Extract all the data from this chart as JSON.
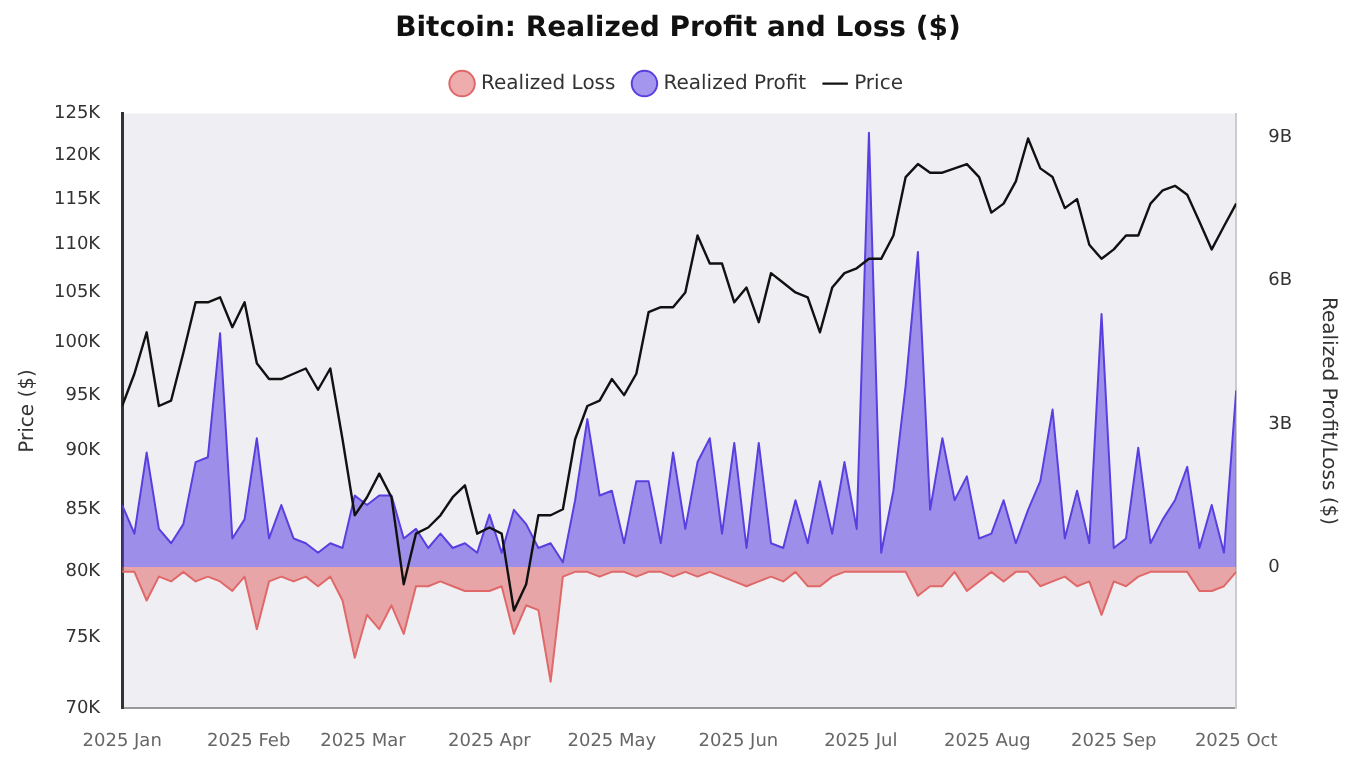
{
  "chart_data": {
    "type": "area",
    "title": "Bitcoin: Realized Profit and Loss ($)",
    "ylabel": "Price ($)",
    "y2label": "Realized Profit/Loss ($)",
    "legend": "top",
    "x": [
      "2025-01-01",
      "2025-01-04",
      "2025-01-07",
      "2025-01-10",
      "2025-01-13",
      "2025-01-16",
      "2025-01-19",
      "2025-01-22",
      "2025-01-25",
      "2025-01-28",
      "2025-01-31",
      "2025-02-03",
      "2025-02-06",
      "2025-02-09",
      "2025-02-12",
      "2025-02-15",
      "2025-02-18",
      "2025-02-21",
      "2025-02-24",
      "2025-02-27",
      "2025-03-02",
      "2025-03-05",
      "2025-03-08",
      "2025-03-11",
      "2025-03-14",
      "2025-03-17",
      "2025-03-20",
      "2025-03-23",
      "2025-03-26",
      "2025-03-29",
      "2025-04-01",
      "2025-04-04",
      "2025-04-07",
      "2025-04-10",
      "2025-04-13",
      "2025-04-16",
      "2025-04-19",
      "2025-04-22",
      "2025-04-25",
      "2025-04-28",
      "2025-05-01",
      "2025-05-04",
      "2025-05-07",
      "2025-05-10",
      "2025-05-13",
      "2025-05-16",
      "2025-05-19",
      "2025-05-22",
      "2025-05-25",
      "2025-05-28",
      "2025-05-31",
      "2025-06-03",
      "2025-06-06",
      "2025-06-09",
      "2025-06-12",
      "2025-06-15",
      "2025-06-18",
      "2025-06-21",
      "2025-06-24",
      "2025-06-27",
      "2025-06-30",
      "2025-07-03",
      "2025-07-06",
      "2025-07-09",
      "2025-07-12",
      "2025-07-15",
      "2025-07-18",
      "2025-07-21",
      "2025-07-24",
      "2025-07-27",
      "2025-07-30",
      "2025-08-02",
      "2025-08-05",
      "2025-08-08",
      "2025-08-11",
      "2025-08-14",
      "2025-08-17",
      "2025-08-20",
      "2025-08-23",
      "2025-08-26",
      "2025-08-29",
      "2025-09-01",
      "2025-09-04",
      "2025-09-07",
      "2025-09-10",
      "2025-09-13",
      "2025-09-16",
      "2025-09-19",
      "2025-09-22",
      "2025-09-25",
      "2025-09-28",
      "2025-10-01"
    ],
    "xlim": [
      "2025-01-01",
      "2025-10-01"
    ],
    "xticks": [
      {
        "value": "2025-01-01",
        "label": "2025 Jan"
      },
      {
        "value": "2025-02-01",
        "label": "2025 Feb"
      },
      {
        "value": "2025-03-01",
        "label": "2025 Mar"
      },
      {
        "value": "2025-04-01",
        "label": "2025 Apr"
      },
      {
        "value": "2025-05-01",
        "label": "2025 May"
      },
      {
        "value": "2025-06-01",
        "label": "2025 Jun"
      },
      {
        "value": "2025-07-01",
        "label": "2025 Jul"
      },
      {
        "value": "2025-08-01",
        "label": "2025 Aug"
      },
      {
        "value": "2025-09-01",
        "label": "2025 Sep"
      },
      {
        "value": "2025-10-01",
        "label": "2025 Oct"
      }
    ],
    "log": "y",
    "ylim": [
      70000,
      125000
    ],
    "yticks": [
      {
        "value": 70000,
        "label": "70K"
      },
      {
        "value": 75000,
        "label": "75K"
      },
      {
        "value": 80000,
        "label": "80K"
      },
      {
        "value": 85000,
        "label": "85K"
      },
      {
        "value": 90000,
        "label": "90K"
      },
      {
        "value": 95000,
        "label": "95K"
      },
      {
        "value": 100000,
        "label": "100K"
      },
      {
        "value": 105000,
        "label": "105K"
      },
      {
        "value": 110000,
        "label": "110K"
      },
      {
        "value": 115000,
        "label": "115K"
      },
      {
        "value": 120000,
        "label": "120K"
      },
      {
        "value": 125000,
        "label": "125K"
      }
    ],
    "y2lim": [
      -2.96,
      9.5
    ],
    "y2ticks": [
      0,
      {
        "value": 3,
        "label": "3B"
      },
      {
        "value": 6,
        "label": "6B"
      },
      {
        "value": 9,
        "label": "9B"
      }
    ],
    "series": [
      {
        "name": "Realized Loss",
        "axis": "y2",
        "color": "#e06868",
        "values": [
          -0.1,
          -0.1,
          -0.7,
          -0.2,
          -0.3,
          -0.1,
          -0.3,
          -0.2,
          -0.3,
          -0.5,
          -0.2,
          -1.3,
          -0.3,
          -0.2,
          -0.3,
          -0.2,
          -0.4,
          -0.2,
          -0.7,
          -1.9,
          -1.0,
          -1.3,
          -0.8,
          -1.4,
          -0.4,
          -0.4,
          -0.3,
          -0.4,
          -0.5,
          -0.5,
          -0.5,
          -0.4,
          -1.4,
          -0.8,
          -0.9,
          -2.4,
          -0.2,
          -0.1,
          -0.1,
          -0.2,
          -0.1,
          -0.1,
          -0.2,
          -0.1,
          -0.1,
          -0.2,
          -0.1,
          -0.2,
          -0.1,
          -0.2,
          -0.3,
          -0.4,
          -0.3,
          -0.2,
          -0.3,
          -0.1,
          -0.4,
          -0.4,
          -0.2,
          -0.1,
          -0.1,
          -0.1,
          -0.1,
          -0.1,
          -0.1,
          -0.6,
          -0.4,
          -0.4,
          -0.1,
          -0.5,
          -0.3,
          -0.1,
          -0.3,
          -0.1,
          -0.1,
          -0.4,
          -0.3,
          -0.2,
          -0.4,
          -0.3,
          -1.0,
          -0.3,
          -0.4,
          -0.2,
          -0.1,
          -0.1,
          -0.1,
          -0.1,
          -0.5,
          -0.5,
          -0.4,
          -0.1
        ]
      },
      {
        "name": "Realized Profit",
        "axis": "y2",
        "color": "#5a3fe0",
        "values": [
          1.3,
          0.7,
          2.4,
          0.8,
          0.5,
          0.9,
          2.2,
          2.3,
          4.9,
          0.6,
          1.0,
          2.7,
          0.6,
          1.3,
          0.6,
          0.5,
          0.3,
          0.5,
          0.4,
          1.5,
          1.3,
          1.5,
          1.5,
          0.6,
          0.8,
          0.4,
          0.7,
          0.4,
          0.5,
          0.3,
          1.1,
          0.3,
          1.2,
          0.9,
          0.4,
          0.5,
          0.1,
          1.4,
          3.1,
          1.5,
          1.6,
          0.5,
          1.8,
          1.8,
          0.5,
          2.4,
          0.8,
          2.2,
          2.7,
          0.7,
          2.6,
          0.4,
          2.6,
          0.5,
          0.4,
          1.4,
          0.5,
          1.8,
          0.7,
          2.2,
          0.8,
          9.1,
          0.3,
          1.6,
          3.8,
          6.6,
          1.2,
          2.7,
          1.4,
          1.9,
          0.6,
          0.7,
          1.4,
          0.5,
          1.2,
          1.8,
          3.3,
          0.6,
          1.6,
          0.5,
          5.3,
          0.4,
          0.6,
          2.5,
          0.5,
          1.0,
          1.4,
          2.1,
          0.4,
          1.3,
          0.3,
          3.7
        ]
      },
      {
        "name": "Price",
        "type": "line",
        "axis": "y",
        "color": "#111111",
        "values": [
          94000,
          97000,
          101000,
          94000,
          94500,
          99000,
          104000,
          104000,
          104500,
          101500,
          104000,
          98000,
          96500,
          96500,
          97000,
          97500,
          95500,
          97500,
          91000,
          84500,
          86000,
          88000,
          86000,
          79000,
          83000,
          83500,
          84500,
          86000,
          87000,
          83000,
          83500,
          83000,
          77000,
          79000,
          84500,
          84500,
          85000,
          91000,
          94000,
          94500,
          96500,
          95000,
          97000,
          103000,
          103500,
          103500,
          105000,
          111000,
          108000,
          108000,
          104000,
          105500,
          102000,
          107000,
          106000,
          105000,
          104500,
          101000,
          105500,
          107000,
          107500,
          108500,
          108500,
          111000,
          117500,
          119000,
          118000,
          118000,
          118500,
          119000,
          117500,
          113500,
          114500,
          117000,
          122000,
          118500,
          117500,
          114000,
          115000,
          110000,
          108500,
          109500,
          111000,
          111000,
          114500,
          116000,
          116500,
          115500,
          112500,
          109500,
          112000,
          114500
        ]
      }
    ]
  }
}
